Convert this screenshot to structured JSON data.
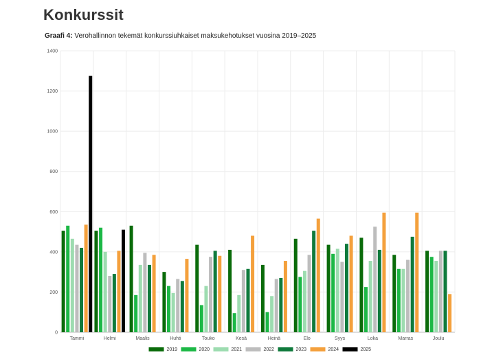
{
  "page": {
    "title": "Konkurssit",
    "caption_label": "Graafi 4:",
    "caption_text": " Verohallinnon tekemät konkurssiuhkaiset maksukehotukset vuosina 2019–2025"
  },
  "chart_data": {
    "type": "bar",
    "title": "",
    "xlabel": "",
    "ylabel": "",
    "ylim": [
      0,
      1400
    ],
    "yticks": [
      0,
      200,
      400,
      600,
      800,
      1000,
      1200,
      1400
    ],
    "grid": true,
    "legend_position": "bottom-center",
    "categories": [
      "Tammi",
      "Helmi",
      "Maalis",
      "Huhti",
      "Touko",
      "Kesä",
      "Heinä",
      "Elo",
      "Syys",
      "Loka",
      "Marras",
      "Joulu"
    ],
    "series": [
      {
        "name": "2019",
        "color": "#0a6b0a",
        "values": [
          505,
          505,
          530,
          300,
          435,
          410,
          335,
          465,
          435,
          470,
          385,
          405
        ]
      },
      {
        "name": "2020",
        "color": "#1cb846",
        "values": [
          530,
          520,
          185,
          230,
          135,
          95,
          100,
          275,
          390,
          225,
          315,
          375
        ]
      },
      {
        "name": "2021",
        "color": "#9ddcb0",
        "values": [
          465,
          400,
          335,
          195,
          230,
          185,
          180,
          305,
          415,
          355,
          315,
          355
        ]
      },
      {
        "name": "2022",
        "color": "#bdbdbd",
        "values": [
          435,
          280,
          395,
          265,
          375,
          310,
          265,
          385,
          350,
          525,
          360,
          405
        ]
      },
      {
        "name": "2023",
        "color": "#0f7a3c",
        "values": [
          420,
          290,
          335,
          255,
          405,
          315,
          270,
          505,
          440,
          410,
          475,
          405
        ]
      },
      {
        "name": "2024",
        "color": "#f4a03c",
        "values": [
          535,
          405,
          385,
          365,
          380,
          480,
          355,
          565,
          480,
          595,
          595,
          190
        ]
      },
      {
        "name": "2025",
        "color": "#000000",
        "values": [
          1275,
          510,
          null,
          null,
          null,
          null,
          null,
          null,
          null,
          null,
          null,
          null
        ]
      }
    ]
  }
}
